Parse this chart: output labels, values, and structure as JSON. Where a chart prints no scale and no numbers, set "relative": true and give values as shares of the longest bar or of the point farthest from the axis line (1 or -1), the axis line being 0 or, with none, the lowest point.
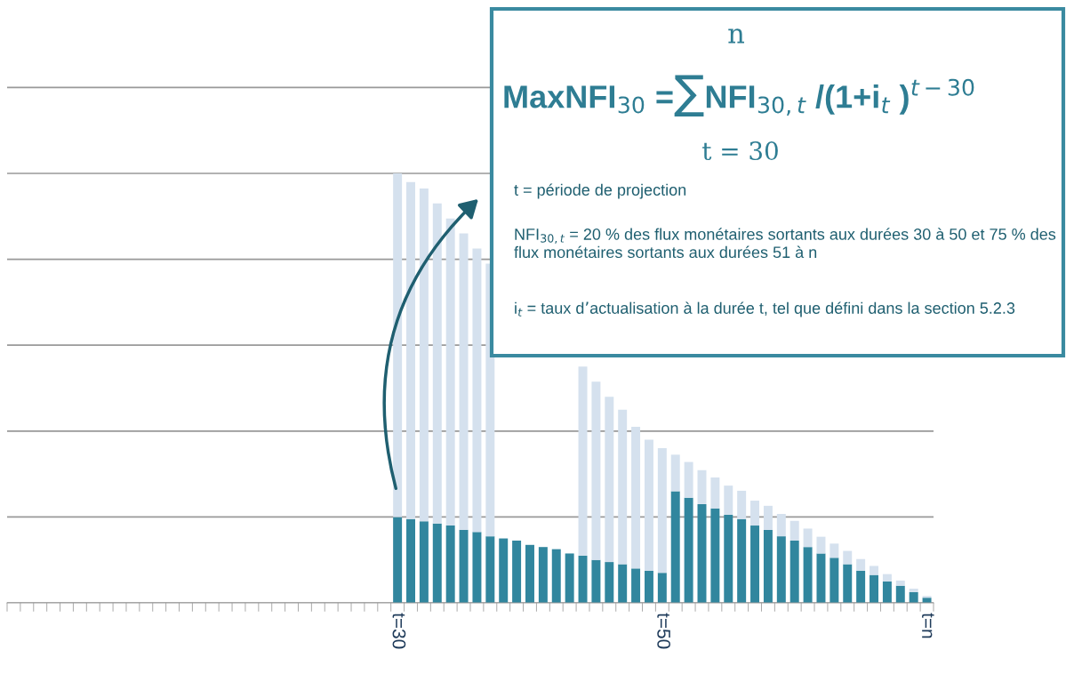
{
  "chart_data": {
    "type": "bar",
    "stacked": true,
    "relative": true,
    "grid": "y",
    "tick_labels": "x",
    "categories": [
      null,
      null,
      null,
      null,
      null,
      null,
      null,
      null,
      null,
      null,
      null,
      null,
      null,
      null,
      null,
      null,
      null,
      null,
      null,
      null,
      null,
      null,
      null,
      null,
      null,
      null,
      null,
      null,
      null,
      "t=30",
      null,
      null,
      null,
      null,
      null,
      null,
      null,
      null,
      null,
      null,
      null,
      null,
      null,
      null,
      null,
      null,
      null,
      null,
      null,
      "t=50",
      null,
      null,
      null,
      null,
      null,
      null,
      null,
      null,
      null,
      null,
      null,
      null,
      null,
      null,
      null,
      null,
      null,
      null,
      null,
      "t=n"
    ],
    "series": [
      {
        "color": "#31869e",
        "values": [
          null,
          null,
          null,
          null,
          null,
          null,
          null,
          null,
          null,
          null,
          null,
          null,
          null,
          null,
          null,
          null,
          null,
          null,
          null,
          null,
          null,
          null,
          null,
          null,
          null,
          null,
          null,
          null,
          null,
          0.2,
          0.195,
          0.19,
          0.185,
          0.18,
          0.17,
          0.165,
          0.155,
          0.15,
          0.145,
          0.135,
          0.13,
          0.125,
          0.115,
          0.11,
          0.1,
          0.095,
          0.09,
          0.08,
          0.075,
          0.07,
          0.26,
          0.245,
          0.23,
          0.22,
          0.205,
          0.195,
          0.18,
          0.17,
          0.155,
          0.145,
          0.13,
          0.115,
          0.105,
          0.09,
          0.075,
          0.065,
          0.05,
          0.04,
          0.025,
          0.012
        ]
      },
      {
        "color": "#d5e1ee",
        "values": [
          null,
          null,
          null,
          null,
          null,
          null,
          null,
          null,
          null,
          null,
          null,
          null,
          null,
          null,
          null,
          null,
          null,
          null,
          null,
          null,
          null,
          null,
          null,
          null,
          null,
          null,
          null,
          null,
          null,
          0.8,
          0.785,
          0.775,
          0.745,
          0.715,
          0.69,
          0.66,
          0.635,
          null,
          null,
          null,
          null,
          null,
          null,
          0.44,
          0.415,
          0.385,
          0.36,
          0.33,
          0.305,
          0.29,
          0.085,
          0.083,
          0.079,
          0.072,
          0.068,
          0.066,
          0.058,
          0.056,
          0.052,
          0.046,
          0.043,
          0.039,
          0.033,
          0.031,
          0.027,
          0.021,
          0.017,
          0.012,
          0.008,
          0.004
        ]
      }
    ],
    "annotations": [
      "n",
      "MaxNFI$_{30}$ =∑NFI$_{30,t}$ /(1+i$_{t}$ )$^{t−30}$",
      "t = 30",
      "t = période de projection",
      "NFI$_{30,t}$ = 20 % des flux monétaires sortants aux durées 30 à 50 et 75 % des flux monétaires sortants aux durées 51 à n",
      "i$_{t}$ = taux d’actualisation à la durée t, tel que défini dans la section 5.2.3"
    ]
  }
}
